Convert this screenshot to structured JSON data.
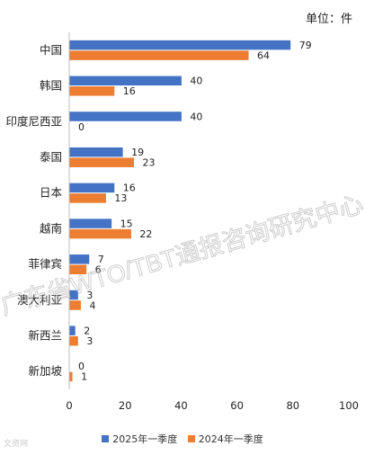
{
  "unit_label": "单位：件",
  "watermark": "广东省WTO/TBT通报咨询研究中心",
  "logo_text": "文资网",
  "colors": {
    "series1": "#4472C4",
    "series2": "#ED7D31",
    "axis": "#bfbfbf",
    "text": "#222222"
  },
  "chart_data": {
    "type": "bar",
    "orientation": "horizontal",
    "categories": [
      "中国",
      "韩国",
      "印度尼西亚",
      "泰国",
      "日本",
      "越南",
      "菲律宾",
      "澳大利亚",
      "新西兰",
      "新加坡"
    ],
    "series": [
      {
        "name": "2025年一季度",
        "values": [
          79,
          40,
          40,
          19,
          16,
          15,
          7,
          3,
          2,
          0
        ]
      },
      {
        "name": "2024年一季度",
        "values": [
          64,
          16,
          0,
          23,
          13,
          22,
          6,
          4,
          3,
          1
        ]
      }
    ],
    "xlim": [
      0,
      100
    ],
    "xticks": [
      0,
      20,
      40,
      60,
      80,
      100
    ],
    "title": "",
    "xlabel": "",
    "ylabel": "",
    "grid": false,
    "legend_position": "bottom"
  }
}
